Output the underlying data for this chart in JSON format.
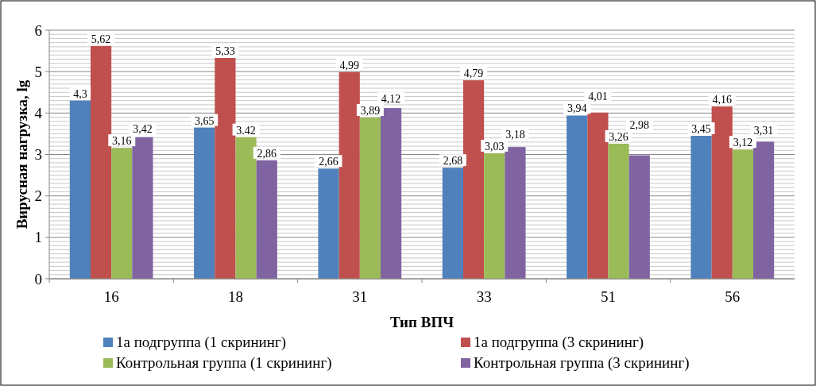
{
  "chart_data": {
    "type": "bar",
    "xlabel": "Тип ВПЧ",
    "ylabel": "Вирусная нагрузка, lg",
    "categories": [
      "16",
      "18",
      "31",
      "33",
      "51",
      "56"
    ],
    "ylim": [
      0,
      6
    ],
    "yticks": [
      0,
      1,
      2,
      3,
      4,
      5,
      6
    ],
    "grid": "y",
    "legend": "bottom",
    "series": [
      {
        "name": "1а подгруппа (1 скрининг)",
        "color": "#4f81bd",
        "values": [
          4.3,
          3.65,
          2.66,
          2.68,
          3.94,
          3.45
        ],
        "value_labels": [
          "4,3",
          "3,65",
          "2,66",
          "2,68",
          "3,94",
          "3,45"
        ]
      },
      {
        "name": "1а подгруппа (3 скрининг)",
        "color": "#c0504d",
        "values": [
          5.62,
          5.33,
          4.99,
          4.79,
          4.01,
          4.16
        ],
        "value_labels": [
          "5,62",
          "5,33",
          "4,99",
          "4,79",
          "4,01",
          "4,16"
        ]
      },
      {
        "name": "Контрольная группа (1 скрининг)",
        "color": "#9bbb59",
        "values": [
          3.16,
          3.42,
          3.89,
          3.03,
          3.26,
          3.12
        ],
        "value_labels": [
          "3,16",
          "3.42",
          "3,89",
          "3,03",
          "3,26",
          "3,12"
        ]
      },
      {
        "name": "Контрольная группа (3 скрининг)",
        "color": "#8064a2",
        "values": [
          3.42,
          2.86,
          4.12,
          3.18,
          2.98,
          3.31
        ],
        "value_labels": [
          "3,42",
          "2,86",
          "4,12",
          "3,18",
          "2,98",
          "3,31"
        ]
      }
    ]
  }
}
